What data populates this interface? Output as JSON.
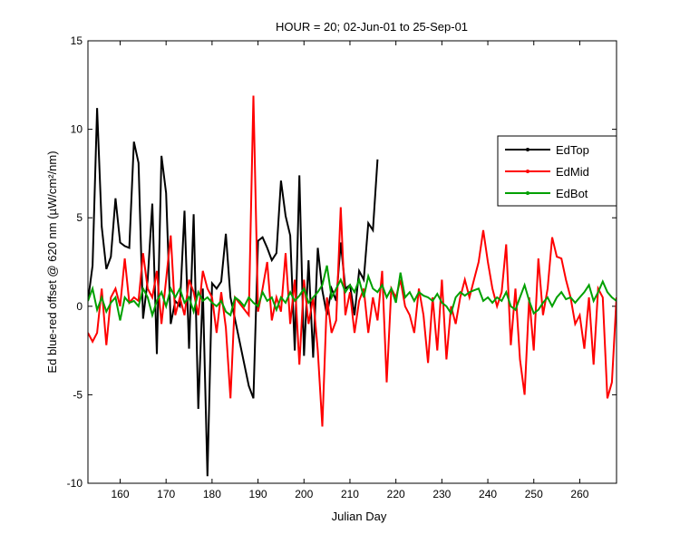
{
  "chart_data": {
    "type": "line",
    "title": "HOUR = 20; 02-Jun-01 to 25-Sep-01",
    "x_label": "Julian Day",
    "y_label": "Ed blue-red offset @ 620 nm (µW/cm²/nm)",
    "xlim": [
      153,
      268
    ],
    "ylim": [
      -10,
      15
    ],
    "xticks": [
      160,
      170,
      180,
      190,
      200,
      210,
      220,
      230,
      240,
      250,
      260
    ],
    "yticks": [
      -10,
      -5,
      0,
      5,
      10,
      15
    ],
    "legend": "upper right",
    "series": [
      {
        "name": "EdTop",
        "color": "#000000",
        "x": [
          153,
          154,
          155,
          156,
          157,
          158,
          159,
          160,
          161,
          162,
          163,
          164,
          165,
          166,
          167,
          168,
          169,
          170,
          171,
          172,
          173,
          174,
          175,
          176,
          177,
          178,
          179,
          180,
          181,
          182,
          183,
          184,
          188,
          189,
          190,
          191,
          192,
          193,
          194,
          195,
          196,
          197,
          198,
          199,
          200,
          201,
          202,
          203,
          204,
          205,
          206,
          207,
          208,
          209,
          210,
          211,
          212,
          213,
          214,
          215,
          216
        ],
        "values": [
          0.3,
          2.3,
          11.2,
          4.5,
          2.1,
          2.8,
          6.1,
          3.6,
          3.4,
          3.3,
          9.3,
          8.1,
          -0.7,
          1.5,
          5.8,
          -2.7,
          8.5,
          6.4,
          -1.0,
          0.3,
          0,
          5.4,
          -2.4,
          5.2,
          -5.8,
          1.0,
          -9.6,
          1.3,
          1.0,
          1.4,
          4.1,
          0.5,
          -4.5,
          -5.2,
          3.7,
          3.9,
          3.3,
          2.6,
          3.0,
          7.1,
          5.1,
          4.0,
          -2.5,
          7.4,
          -2.8,
          2.6,
          -2.9,
          3.3,
          0.9,
          -0.5,
          1.0,
          0.3,
          3.6,
          1.0,
          1.2,
          -0.5,
          2.0,
          1.5,
          4.7,
          4.3,
          8.3
        ]
      },
      {
        "name": "EdMid",
        "color": "#ff0000",
        "x": [
          153,
          154,
          155,
          156,
          157,
          158,
          159,
          160,
          161,
          162,
          163,
          164,
          165,
          166,
          167,
          168,
          169,
          170,
          171,
          172,
          173,
          174,
          175,
          176,
          177,
          178,
          179,
          180,
          181,
          182,
          183,
          184,
          185,
          188,
          189,
          190,
          191,
          192,
          193,
          194,
          195,
          196,
          197,
          198,
          199,
          200,
          201,
          202,
          203,
          204,
          205,
          206,
          207,
          208,
          209,
          210,
          211,
          212,
          213,
          214,
          215,
          216,
          217,
          218,
          219,
          220,
          221,
          222,
          223,
          224,
          225,
          226,
          227,
          228,
          229,
          230,
          231,
          232,
          233,
          234,
          235,
          236,
          237,
          238,
          239,
          240,
          241,
          242,
          243,
          244,
          245,
          246,
          247,
          248,
          249,
          250,
          251,
          252,
          253,
          254,
          255,
          256,
          257,
          258,
          259,
          260,
          261,
          262,
          263,
          264,
          265,
          266,
          267,
          268
        ],
        "values": [
          -1.5,
          -2.0,
          -1.5,
          1.0,
          -2.2,
          0.5,
          1.0,
          0,
          2.7,
          0.2,
          0.5,
          0.3,
          3.0,
          1.0,
          0.5,
          2.0,
          -1.0,
          1.5,
          4.0,
          -0.5,
          0.5,
          -0.5,
          1.5,
          0.8,
          -0.5,
          2.0,
          1.0,
          0.5,
          -1.5,
          0.8,
          -1.2,
          -5.2,
          0.5,
          -0.5,
          11.9,
          -0.3,
          1.0,
          2.5,
          -0.8,
          0.5,
          -0.3,
          3.0,
          -1.0,
          1.5,
          -3.3,
          1.5,
          -1.0,
          0.5,
          -2.5,
          -6.8,
          0.5,
          -1.5,
          -0.8,
          5.6,
          -0.5,
          0.8,
          -1.5,
          0.3,
          1.0,
          -1.5,
          0.5,
          -0.8,
          2.0,
          -4.3,
          1.0,
          0.5,
          1.5,
          0,
          -0.5,
          -1.5,
          1.0,
          -0.5,
          -3.2,
          0.5,
          -2.5,
          1.5,
          -3.0,
          0,
          -1.0,
          0.5,
          1.5,
          0.5,
          1.5,
          2.5,
          4.3,
          2.5,
          1.0,
          0,
          0.8,
          3.5,
          -2.2,
          1.0,
          -3.0,
          -5.0,
          0.5,
          -2.5,
          2.7,
          -0.5,
          1.0,
          3.9,
          2.8,
          2.7,
          1.5,
          0.5,
          -1.0,
          -0.5,
          -2.4,
          0.5,
          -3.3,
          1.0,
          0.5,
          -5.2,
          -4.3,
          0.5
        ]
      },
      {
        "name": "EdBot",
        "color": "#00a000",
        "x": [
          153,
          154,
          155,
          156,
          157,
          158,
          159,
          160,
          161,
          162,
          163,
          164,
          165,
          166,
          167,
          168,
          169,
          170,
          171,
          172,
          173,
          174,
          175,
          176,
          177,
          178,
          179,
          180,
          181,
          182,
          183,
          184,
          185,
          186,
          187,
          188,
          189,
          190,
          191,
          192,
          193,
          194,
          195,
          196,
          197,
          198,
          199,
          200,
          201,
          202,
          203,
          204,
          205,
          206,
          207,
          208,
          209,
          210,
          211,
          212,
          213,
          214,
          215,
          216,
          217,
          218,
          219,
          220,
          221,
          222,
          223,
          224,
          225,
          226,
          227,
          228,
          229,
          230,
          231,
          232,
          233,
          234,
          235,
          236,
          237,
          238,
          239,
          240,
          241,
          242,
          243,
          244,
          245,
          246,
          247,
          248,
          249,
          250,
          251,
          252,
          253,
          254,
          255,
          256,
          257,
          258,
          259,
          260,
          261,
          262,
          263,
          264,
          265,
          266,
          267,
          268
        ],
        "values": [
          0.3,
          1.0,
          -0.2,
          0.5,
          -0.3,
          0.2,
          0.5,
          -0.8,
          0.5,
          0.2,
          0.3,
          0,
          1.0,
          0.5,
          -0.5,
          0.3,
          0.8,
          0,
          1.0,
          0.5,
          1.0,
          0.2,
          0.5,
          -0.3,
          0.8,
          0.3,
          0.5,
          0.2,
          0,
          0.3,
          -0.3,
          -0.5,
          0.5,
          0.3,
          0,
          0.5,
          0.2,
          0,
          0.8,
          0.3,
          0.5,
          -0.2,
          0.5,
          0.2,
          0.8,
          0.3,
          0.6,
          1.0,
          0.2,
          0.5,
          0.8,
          1.2,
          2.3,
          0.5,
          1.0,
          1.5,
          0.8,
          1.2,
          0.8,
          1.5,
          0.5,
          1.7,
          1.0,
          0.8,
          1.2,
          0.5,
          1.0,
          0.2,
          1.9,
          0.5,
          0.8,
          0.3,
          0.8,
          0.6,
          0.5,
          0.3,
          0.7,
          0.2,
          0,
          -0.4,
          0.5,
          0.8,
          0.6,
          0.8,
          0.9,
          1.0,
          0.3,
          0.5,
          0.2,
          0.5,
          0.3,
          0.8,
          0,
          -0.2,
          0.5,
          1.2,
          0.3,
          -0.4,
          -0.2,
          0.2,
          0.5,
          0,
          0.5,
          0.8,
          0.4,
          0.5,
          0.2,
          0.5,
          0.8,
          1.2,
          0.3,
          0.8,
          1.4,
          0.8,
          0.5,
          0.3
        ]
      }
    ]
  }
}
